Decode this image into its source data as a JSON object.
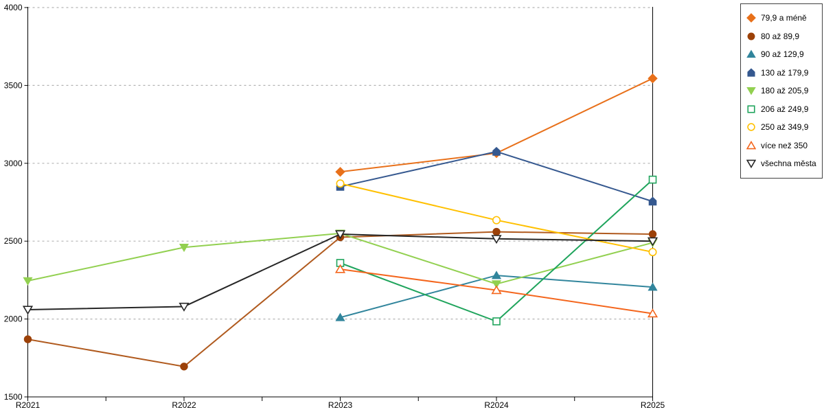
{
  "background": "#FFFFFF",
  "axis_color": "#000000",
  "gridline_color": "#B3B3B3",
  "legend_border_color": "#404040",
  "chart_data": {
    "type": "line",
    "categories": [
      "R2021",
      "R2022",
      "R2023",
      "R2024",
      "R2025"
    ],
    "series": [
      {
        "name": "79,9 a méně",
        "color": "#E8701A",
        "marker": "diamond",
        "fill": "filled",
        "values": [
          null,
          null,
          2945,
          3065,
          3545
        ]
      },
      {
        "name": "80 až 89,9",
        "color": "#B05A1E",
        "marker_color": "#9C4108",
        "marker": "circle",
        "fill": "filled",
        "values": [
          1870,
          1695,
          2525,
          2560,
          2545
        ]
      },
      {
        "name": "90 až 129,9",
        "color": "#31859C",
        "marker": "triangle-up",
        "fill": "filled",
        "values": [
          null,
          null,
          2010,
          2280,
          2205
        ]
      },
      {
        "name": "130 až 179,9",
        "color": "#35588F",
        "marker": "pentagon",
        "fill": "filled",
        "values": [
          null,
          null,
          2850,
          3075,
          2755
        ]
      },
      {
        "name": "180 až 205,9",
        "color": "#92D050",
        "marker": "triangle-down",
        "fill": "filled",
        "values": [
          2245,
          2460,
          2550,
          2225,
          2490
        ]
      },
      {
        "name": "206 až 249,9",
        "color": "#1FA45C",
        "marker": "square",
        "fill": "open",
        "values": [
          null,
          null,
          2360,
          1985,
          2895
        ]
      },
      {
        "name": "250 až 349,9",
        "color": "#FFC000",
        "marker": "circle",
        "fill": "open",
        "values": [
          null,
          null,
          2870,
          2635,
          2430
        ]
      },
      {
        "name": "více než 350",
        "color": "#F4651C",
        "marker": "triangle-up",
        "fill": "open",
        "values": [
          null,
          null,
          2320,
          2185,
          2035
        ]
      },
      {
        "name": "všechna města",
        "color": "#262626",
        "marker": "triangle-down",
        "fill": "open",
        "values": [
          2060,
          2080,
          2545,
          2515,
          2500
        ]
      }
    ],
    "xlabel": "",
    "ylabel": "",
    "title": "",
    "ylim": [
      1500,
      4000
    ],
    "ytick_step": 500,
    "y_tick_labels": [
      "1500",
      "2000",
      "2500",
      "3000",
      "3500",
      "4000"
    ],
    "grid": "horizontal-dotted",
    "legend_position": "top-right"
  }
}
